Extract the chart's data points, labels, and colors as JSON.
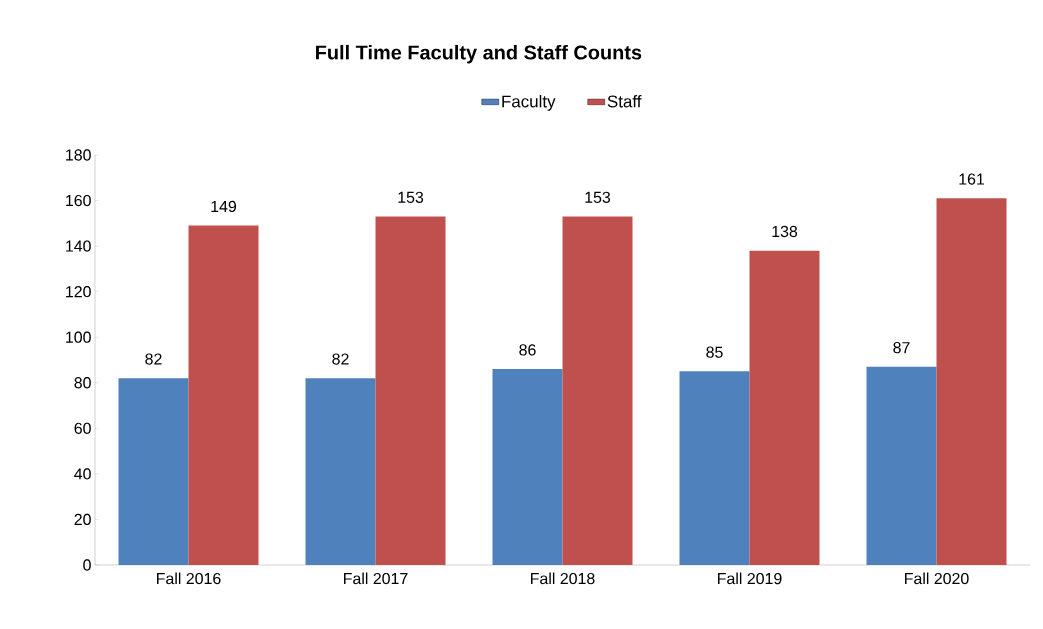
{
  "chart_data": {
    "type": "bar",
    "title": "Full Time Faculty and Staff Counts",
    "categories": [
      "Fall 2016",
      "Fall 2017",
      "Fall 2018",
      "Fall 2019",
      "Fall 2020"
    ],
    "series": [
      {
        "name": "Faculty",
        "color": "#4f81bd",
        "values": [
          82,
          82,
          86,
          85,
          87
        ]
      },
      {
        "name": "Staff",
        "color": "#c0504d",
        "values": [
          149,
          153,
          153,
          138,
          161
        ]
      }
    ],
    "ylim": [
      0,
      180
    ],
    "yticks": [
      0,
      20,
      40,
      60,
      80,
      100,
      120,
      140,
      160,
      180
    ],
    "data_labels": true,
    "legend": "top",
    "grid": false
  }
}
